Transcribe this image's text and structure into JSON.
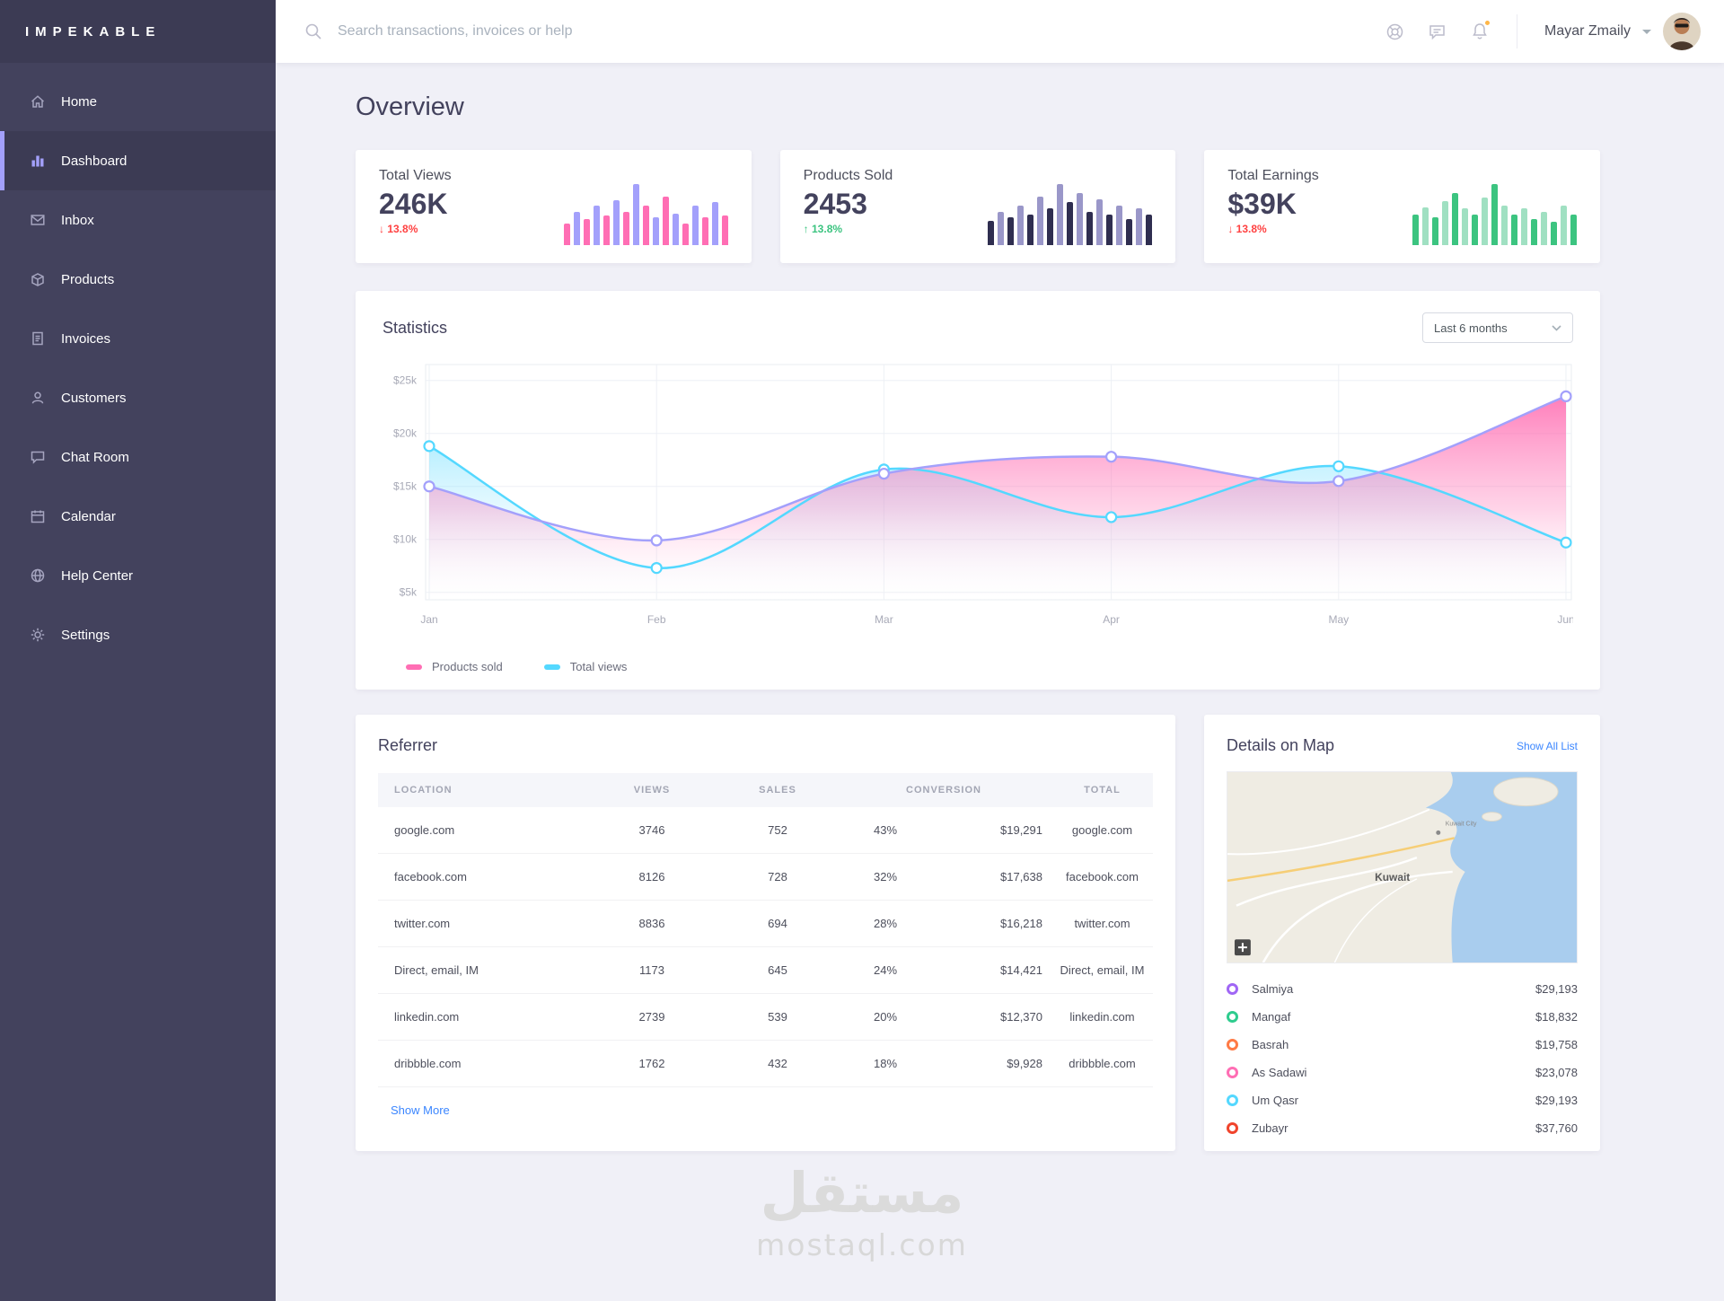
{
  "brand": {
    "name": "IMPEKABLE"
  },
  "sidebar": {
    "items": [
      {
        "label": "Home",
        "icon": "home",
        "active": false
      },
      {
        "label": "Dashboard",
        "icon": "dashboard",
        "active": true
      },
      {
        "label": "Inbox",
        "icon": "inbox",
        "active": false
      },
      {
        "label": "Products",
        "icon": "products",
        "active": false
      },
      {
        "label": "Invoices",
        "icon": "invoices",
        "active": false
      },
      {
        "label": "Customers",
        "icon": "customers",
        "active": false
      },
      {
        "label": "Chat Room",
        "icon": "chat",
        "active": false
      },
      {
        "label": "Calendar",
        "icon": "calendar",
        "active": false
      },
      {
        "label": "Help Center",
        "icon": "help",
        "active": false
      },
      {
        "label": "Settings",
        "icon": "settings",
        "active": false
      }
    ]
  },
  "topbar": {
    "search_placeholder": "Search transactions, invoices or help",
    "user_name": "Mayar Zmaily"
  },
  "page_title": "Overview",
  "stat_cards": [
    {
      "title": "Total Views",
      "value": "246K",
      "change": "13.8%",
      "direction": "down",
      "bar_colors": [
        "#FF6EB4",
        "#A3A0FB"
      ],
      "bars": [
        0.35,
        0.55,
        0.42,
        0.65,
        0.48,
        0.74,
        0.55,
        1,
        0.65,
        0.45,
        0.8,
        0.52,
        0.35,
        0.65,
        0.45,
        0.7,
        0.48
      ]
    },
    {
      "title": "Products Sold",
      "value": "2453",
      "change": "13.8%",
      "direction": "up",
      "bar_colors": [
        "#2F2E50",
        "#9A97C9"
      ],
      "bars": [
        0.4,
        0.55,
        0.45,
        0.65,
        0.5,
        0.8,
        0.6,
        1,
        0.7,
        0.85,
        0.55,
        0.75,
        0.5,
        0.65,
        0.42,
        0.6,
        0.5
      ]
    },
    {
      "title": "Total Earnings",
      "value": "$39K",
      "change": "13.8%",
      "direction": "down",
      "bar_colors": [
        "#3CC480",
        "#A0E0C2"
      ],
      "bars": [
        0.5,
        0.62,
        0.45,
        0.72,
        0.85,
        0.6,
        0.5,
        0.78,
        1,
        0.65,
        0.5,
        0.6,
        0.42,
        0.55,
        0.38,
        0.65,
        0.5
      ]
    }
  ],
  "statistics": {
    "title": "Statistics",
    "range_label": "Last 6 months"
  },
  "chart_data": {
    "type": "area",
    "title": "Statistics",
    "x": [
      "Jan",
      "Feb",
      "Mar",
      "Apr",
      "May",
      "Jun"
    ],
    "series": [
      {
        "name": "Products sold",
        "color": "#FF6EB4",
        "line_color": "#A3A0FB",
        "values": [
          15000,
          9900,
          16200,
          17800,
          15500,
          23500
        ]
      },
      {
        "name": "Total views",
        "color": "#54D8FF",
        "line_color": "#54D8FF",
        "values": [
          18800,
          7300,
          16600,
          12100,
          16900,
          9700
        ]
      }
    ],
    "yticks": [
      "$5k",
      "$10k",
      "$15k",
      "$20k",
      "$25k"
    ],
    "ytick_values": [
      5000,
      10000,
      15000,
      20000,
      25000
    ],
    "ylim": [
      4300,
      26500
    ],
    "grid": true,
    "legend_position": "bottom"
  },
  "referrer": {
    "title": "Referrer",
    "show_more": "Show More",
    "columns": [
      "LOCATION",
      "VIEWS",
      "SALES",
      "CONVERSION",
      "TOTAL"
    ],
    "rows": [
      {
        "location": "google.com",
        "views": "3746",
        "sales": "752",
        "conversion": "43%",
        "amount": "$19,291",
        "total": "google.com"
      },
      {
        "location": "facebook.com",
        "views": "8126",
        "sales": "728",
        "conversion": "32%",
        "amount": "$17,638",
        "total": "facebook.com"
      },
      {
        "location": "twitter.com",
        "views": "8836",
        "sales": "694",
        "conversion": "28%",
        "amount": "$16,218",
        "total": "twitter.com"
      },
      {
        "location": "Direct, email, IM",
        "views": "1173",
        "sales": "645",
        "conversion": "24%",
        "amount": "$14,421",
        "total": "Direct, email, IM"
      },
      {
        "location": "linkedin.com",
        "views": "2739",
        "sales": "539",
        "conversion": "20%",
        "amount": "$12,370",
        "total": "linkedin.com"
      },
      {
        "location": "dribbble.com",
        "views": "1762",
        "sales": "432",
        "conversion": "18%",
        "amount": "$9,928",
        "total": "dribbble.com"
      }
    ]
  },
  "map_card": {
    "title": "Details on Map",
    "action": "Show All List",
    "map_label": "Kuwait",
    "locations": [
      {
        "name": "Salmiya",
        "amount": "$29,193",
        "color": "#A066F5"
      },
      {
        "name": "Mangaf",
        "amount": "$18,832",
        "color": "#2ECC8E"
      },
      {
        "name": "Basrah",
        "amount": "$19,758",
        "color": "#FF7A45"
      },
      {
        "name": "As Sadawi",
        "amount": "$23,078",
        "color": "#FF6EB4"
      },
      {
        "name": "Um Qasr",
        "amount": "$29,193",
        "color": "#54D8FF"
      },
      {
        "name": "Zubayr",
        "amount": "$37,760",
        "color": "#F0442C"
      }
    ]
  },
  "watermark": {
    "arabic": "مستقل",
    "latin": "mostaql.com"
  },
  "colors": {
    "sidebar_bg": "#43425D",
    "sidebar_active": "#3C3B54",
    "accent": "#A3A0FB",
    "page_bg": "#F0F0F7",
    "link": "#3B86FF",
    "down": "#FF4141",
    "up": "#3CC480",
    "pink": "#FF6EB4",
    "cyan": "#54D8FF"
  }
}
